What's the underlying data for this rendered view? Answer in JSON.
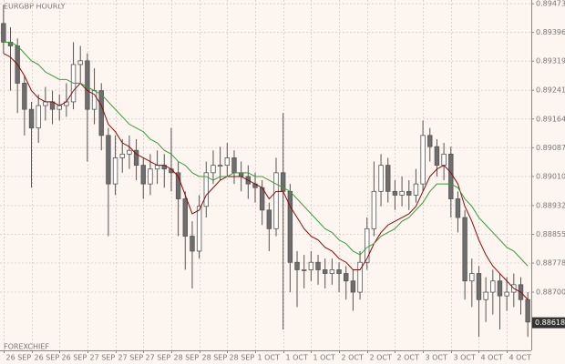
{
  "chart_data": {
    "type": "candlestick",
    "title": "EURGBP HOURLY",
    "watermark": "FOREXCHIEF",
    "categories": [
      "26 SEP",
      null,
      null,
      null,
      "26 SEP",
      null,
      null,
      null,
      "26 SEP",
      null,
      null,
      null,
      "27 SEP",
      null,
      null,
      null,
      "27 SEP",
      null,
      null,
      null,
      "27 SEP",
      null,
      null,
      null,
      "28 SEP",
      null,
      null,
      null,
      "28 SEP",
      null,
      null,
      null,
      "28 SEP",
      null,
      null,
      null,
      "1 OCT",
      null,
      null,
      null,
      "1 OCT",
      null,
      null,
      null,
      "1 OCT",
      null,
      null,
      null,
      "2 OCT",
      null,
      null,
      null,
      "2 OCT",
      null,
      null,
      null,
      "2 OCT",
      null,
      null,
      null,
      "3 OCT",
      null,
      null,
      null,
      "3 OCT",
      null,
      null,
      null,
      "4 OCT",
      null,
      null,
      null,
      "4 OCT",
      null,
      null,
      null
    ],
    "open": [
      0.8942,
      0.8937,
      0.8936,
      0.8926,
      0.8919,
      0.8914,
      0.892,
      0.8921,
      0.8919,
      0.892,
      0.8921,
      0.8931,
      0.8932,
      0.8919,
      0.8924,
      0.8912,
      0.8899,
      0.8906,
      0.8907,
      0.8908,
      0.8904,
      0.8899,
      0.8903,
      0.8904,
      0.8903,
      0.8902,
      0.8895,
      0.8885,
      0.8881,
      0.8893,
      0.8902,
      0.8904,
      0.8904,
      0.8906,
      0.8902,
      0.8901,
      0.8899,
      0.8898,
      0.8892,
      0.8887,
      0.8902,
      0.8897,
      0.8878,
      0.8876,
      0.8876,
      0.8878,
      0.8876,
      0.8875,
      0.8876,
      0.8875,
      0.8873,
      0.887,
      0.8878,
      0.8887,
      0.8897,
      0.8904,
      0.8897,
      0.8896,
      0.8897,
      0.8896,
      0.8899,
      0.8912,
      0.8909,
      0.8904,
      0.8907,
      0.8895,
      0.889,
      0.8873,
      0.8875,
      0.8868,
      0.887,
      0.8873,
      0.8869,
      0.887,
      0.8872,
      0.8868
    ],
    "high": [
      0.8947,
      0.8941,
      0.8938,
      0.8928,
      0.8921,
      0.8923,
      0.8925,
      0.8924,
      0.8923,
      0.8926,
      0.8937,
      0.8936,
      0.8934,
      0.893,
      0.8926,
      0.8914,
      0.8912,
      0.8911,
      0.8912,
      0.8911,
      0.8906,
      0.8907,
      0.8908,
      0.8907,
      0.8914,
      0.8905,
      0.8897,
      0.8889,
      0.8896,
      0.8905,
      0.8908,
      0.8909,
      0.891,
      0.8908,
      0.8905,
      0.8904,
      0.8902,
      0.89,
      0.8894,
      0.8906,
      0.8918,
      0.8899,
      0.8881,
      0.888,
      0.8881,
      0.888,
      0.8879,
      0.8879,
      0.8878,
      0.8877,
      0.8876,
      0.8881,
      0.889,
      0.8905,
      0.8907,
      0.8906,
      0.89,
      0.8901,
      0.89,
      0.8903,
      0.8916,
      0.8914,
      0.8911,
      0.891,
      0.8909,
      0.8897,
      0.8892,
      0.8879,
      0.8877,
      0.8874,
      0.8876,
      0.8875,
      0.8874,
      0.8875,
      0.8874,
      0.887
    ],
    "low": [
      0.8934,
      0.8924,
      0.8918,
      0.8912,
      0.8898,
      0.891,
      0.8916,
      0.8915,
      0.8916,
      0.8917,
      0.8919,
      0.8926,
      0.8905,
      0.8915,
      0.8908,
      0.8885,
      0.8896,
      0.8902,
      0.8903,
      0.89,
      0.8895,
      0.8896,
      0.8899,
      0.8898,
      0.8897,
      0.8885,
      0.8876,
      0.8871,
      0.8879,
      0.889,
      0.8899,
      0.89,
      0.8901,
      0.8899,
      0.8897,
      0.8895,
      0.8894,
      0.8888,
      0.8881,
      0.8885,
      0.886,
      0.887,
      0.8866,
      0.8871,
      0.8873,
      0.8872,
      0.8871,
      0.8872,
      0.887,
      0.8868,
      0.8865,
      0.8868,
      0.8876,
      0.8885,
      0.8893,
      0.8894,
      0.8892,
      0.8893,
      0.8892,
      0.8894,
      0.8897,
      0.8905,
      0.8901,
      0.89,
      0.889,
      0.8886,
      0.8868,
      0.8866,
      0.8858,
      0.8862,
      0.8864,
      0.886,
      0.8865,
      0.8866,
      0.8864,
      0.8858
    ],
    "close": [
      0.8937,
      0.8936,
      0.8926,
      0.8919,
      0.8914,
      0.892,
      0.8921,
      0.8919,
      0.892,
      0.8921,
      0.8931,
      0.8932,
      0.8919,
      0.8924,
      0.8912,
      0.8899,
      0.8906,
      0.8907,
      0.8908,
      0.8904,
      0.8899,
      0.8903,
      0.8904,
      0.8903,
      0.8902,
      0.8895,
      0.8885,
      0.8881,
      0.8893,
      0.8902,
      0.8904,
      0.8904,
      0.8906,
      0.8902,
      0.8901,
      0.8899,
      0.8898,
      0.8892,
      0.8887,
      0.8902,
      0.8897,
      0.8878,
      0.8876,
      0.8876,
      0.8878,
      0.8876,
      0.8875,
      0.8876,
      0.8875,
      0.8873,
      0.887,
      0.8878,
      0.8887,
      0.8897,
      0.8904,
      0.8897,
      0.8896,
      0.8897,
      0.8896,
      0.8899,
      0.8912,
      0.8909,
      0.8904,
      0.8907,
      0.8895,
      0.889,
      0.8873,
      0.8875,
      0.8868,
      0.887,
      0.8873,
      0.8869,
      0.887,
      0.8872,
      0.8868,
      0.8862
    ],
    "up_color": "#ffffff",
    "down_color": "#6e6e6e",
    "wick_color": "#555555",
    "lines": [
      {
        "color": "#8b0a0a",
        "values": [
          0.8934,
          0.8933,
          0.8931,
          0.8928,
          0.8924,
          0.8922,
          0.8921,
          0.8921,
          0.892,
          0.8921,
          0.8924,
          0.8926,
          0.8924,
          0.8923,
          0.892,
          0.8915,
          0.8913,
          0.891,
          0.8909,
          0.8907,
          0.8906,
          0.8905,
          0.8904,
          0.8904,
          0.8903,
          0.8901,
          0.8896,
          0.8891,
          0.8892,
          0.8896,
          0.8898,
          0.89,
          0.8901,
          0.8901,
          0.8901,
          0.89,
          0.8899,
          0.8898,
          0.8895,
          0.8897,
          0.8897,
          0.8893,
          0.889,
          0.8887,
          0.8885,
          0.8884,
          0.8882,
          0.8881,
          0.8879,
          0.8878,
          0.8876,
          0.8876,
          0.8879,
          0.8883,
          0.8886,
          0.8888,
          0.8889,
          0.889,
          0.8891,
          0.8893,
          0.8897,
          0.8901,
          0.8903,
          0.8904,
          0.8902,
          0.8899,
          0.8893,
          0.8889,
          0.8884,
          0.888,
          0.8877,
          0.8875,
          0.8873,
          0.8871,
          0.887,
          0.8868
        ]
      },
      {
        "color": "#3a9a3a",
        "values": [
          0.8937,
          0.8937,
          0.8936,
          0.8934,
          0.8932,
          0.8931,
          0.8929,
          0.8928,
          0.8927,
          0.8927,
          0.8926,
          0.8926,
          0.8925,
          0.8924,
          0.8923,
          0.8921,
          0.8919,
          0.8917,
          0.8915,
          0.8914,
          0.8913,
          0.8911,
          0.891,
          0.8908,
          0.8907,
          0.8905,
          0.8904,
          0.8902,
          0.8901,
          0.8901,
          0.89,
          0.8901,
          0.8901,
          0.8902,
          0.8902,
          0.8902,
          0.8901,
          0.8901,
          0.89,
          0.8899,
          0.8898,
          0.8897,
          0.8895,
          0.8893,
          0.8891,
          0.8889,
          0.8887,
          0.8886,
          0.8884,
          0.8883,
          0.8881,
          0.888,
          0.8882,
          0.8883,
          0.8885,
          0.8886,
          0.8887,
          0.8889,
          0.889,
          0.8892,
          0.8894,
          0.8897,
          0.8899,
          0.8899,
          0.8899,
          0.8898,
          0.8895,
          0.8893,
          0.889,
          0.8888,
          0.8886,
          0.8884,
          0.8882,
          0.8881,
          0.8879,
          0.8877
        ]
      }
    ],
    "last_price": 0.88618,
    "ylim": [
      0.88544,
      0.89483
    ],
    "yticks": [
      0.89473,
      0.89396,
      0.89319,
      0.89241,
      0.89164,
      0.89087,
      {
        "value": 0.8901,
        "label": "0.89010"
      },
      0.88932,
      0.88855,
      0.88778,
      {
        "value": 0.887,
        "label": "0.88700"
      }
    ],
    "grid": true
  }
}
